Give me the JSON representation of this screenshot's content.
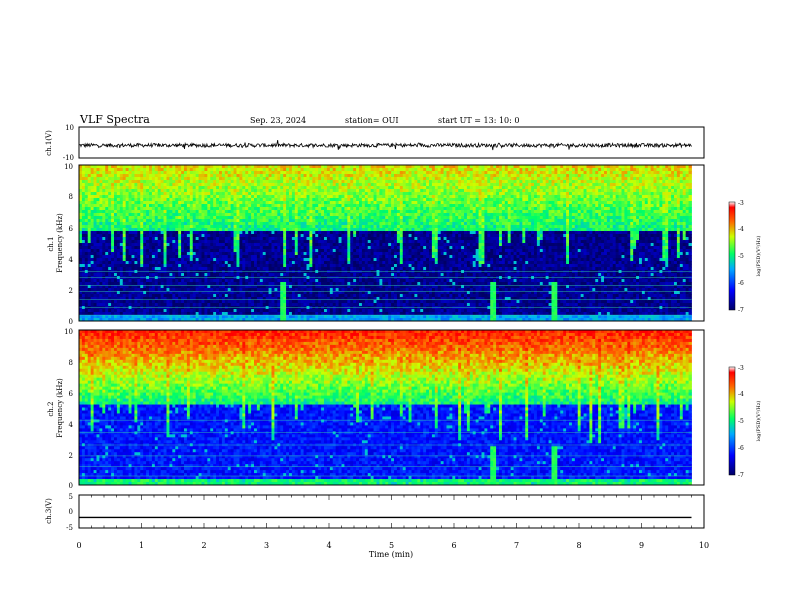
{
  "header": {
    "title": "VLF Spectra",
    "date": "Sep. 23, 2024",
    "station": "station= OUI",
    "start": "start  UT  =   13: 10: 0"
  },
  "chart_data": [
    {
      "type": "line",
      "ylabel": "ch.1(V)",
      "ylim": [
        -10,
        10
      ],
      "y_ticks": [
        "10",
        "-10"
      ],
      "xlim": [
        0,
        10
      ],
      "baseline": -1.8,
      "noise_amplitude": 1.2
    },
    {
      "type": "heatmap",
      "ylabel": "ch.1\nFrequency (kHz)",
      "ylim": [
        0,
        10
      ],
      "y_ticks": [
        "0",
        "2",
        "4",
        "6",
        "8",
        "10"
      ],
      "xlim": [
        0,
        10
      ],
      "colorbar": {
        "label": "log(PSD)(V²/Hz)",
        "range": [
          -7,
          -3
        ],
        "ticks": [
          "-3",
          "-4",
          "-5",
          "-6",
          "-7"
        ]
      },
      "green_floor_khz": 5.8,
      "bursts_min": [
        3.25,
        6.6,
        7.58
      ]
    },
    {
      "type": "heatmap",
      "ylabel": "ch.2\nFrequency (kHz)",
      "ylim": [
        0,
        10
      ],
      "y_ticks": [
        "0",
        "2",
        "4",
        "6",
        "8",
        "10"
      ],
      "xlim": [
        0,
        10
      ],
      "colorbar": {
        "label": "log(PSD)(V²/Hz)",
        "range": [
          -7,
          -3
        ],
        "ticks": [
          "-3",
          "-4",
          "-5",
          "-6",
          "-7"
        ]
      },
      "green_floor_khz": 5.2,
      "bursts_min": [
        6.6,
        7.58
      ]
    },
    {
      "type": "line",
      "ylabel": "ch.3(V)",
      "ylim": [
        -5,
        5
      ],
      "y_ticks": [
        "5",
        "0",
        "-5"
      ],
      "xlim": [
        0,
        10
      ],
      "x": [
        0,
        9.8
      ],
      "y": [
        -1.8,
        -1.8
      ],
      "xlabel": "Time (min)",
      "x_ticks": [
        "0",
        "1",
        "2",
        "3",
        "4",
        "5",
        "6",
        "7",
        "8",
        "9",
        "10"
      ]
    }
  ]
}
